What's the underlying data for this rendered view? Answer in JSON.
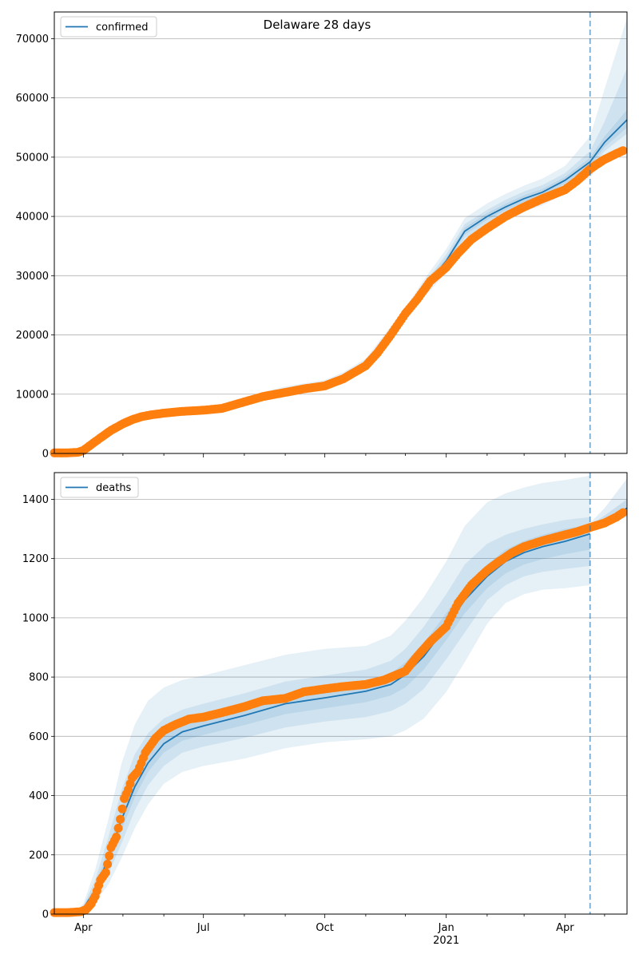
{
  "figure": {
    "title": "Delaware 28 days"
  },
  "colors": {
    "model_line": "#1f77b4",
    "band_fill": "#1f77b4",
    "observed_points": "#ff7f0e",
    "grid": "#b0b0b0",
    "vline": "#1f77b4"
  },
  "chart_data": [
    {
      "type": "line",
      "legend": [
        "confirmed"
      ],
      "legend_position": "top-left",
      "grid": "y",
      "x_axis": {
        "type": "date",
        "range": [
          "2020-03-10",
          "2021-05-18"
        ],
        "major_ticks": [
          {
            "date": "2020-04-01",
            "label": ""
          },
          {
            "date": "2020-07-01",
            "label": ""
          },
          {
            "date": "2020-10-01",
            "label": ""
          },
          {
            "date": "2021-01-01",
            "label": ""
          },
          {
            "date": "2021-04-01",
            "label": ""
          }
        ]
      },
      "y_axis": {
        "range": [
          0,
          74500
        ],
        "ticks": [
          0,
          10000,
          20000,
          30000,
          40000,
          50000,
          60000,
          70000
        ],
        "tick_labels": [
          "0",
          "10000",
          "20000",
          "30000",
          "40000",
          "50000",
          "60000",
          "70000"
        ]
      },
      "forecast_start": "2021-04-20",
      "model_curve": {
        "name": "confirmed",
        "x": [
          "2020-03-10",
          "2020-03-25",
          "2020-04-01",
          "2020-04-15",
          "2020-05-01",
          "2020-05-15",
          "2020-06-01",
          "2020-07-01",
          "2020-07-15",
          "2020-08-01",
          "2020-09-01",
          "2020-10-01",
          "2020-10-15",
          "2020-11-01",
          "2020-11-15",
          "2020-12-01",
          "2020-12-15",
          "2021-01-01",
          "2021-01-15",
          "2021-02-01",
          "2021-02-15",
          "2021-03-01",
          "2021-03-15",
          "2021-04-01",
          "2021-04-20",
          "2021-05-01",
          "2021-05-18"
        ],
        "y": [
          0,
          100,
          1100,
          3000,
          5200,
          6200,
          6900,
          7300,
          7700,
          8900,
          10700,
          11800,
          13000,
          15200,
          19000,
          23300,
          27800,
          32500,
          37500,
          40000,
          41600,
          43000,
          44100,
          46100,
          49200,
          52500,
          56300
        ]
      },
      "bands": [
        {
          "level": "outer",
          "lower": [
            0,
            90,
            900,
            2600,
            4700,
            5700,
            6400,
            6800,
            7200,
            8400,
            10200,
            11300,
            12400,
            14600,
            18200,
            22200,
            26300,
            30500,
            35200,
            37800,
            39400,
            40800,
            41900,
            43800,
            46600,
            49300,
            51800
          ],
          "upper": [
            0,
            110,
            1300,
            3500,
            5800,
            6700,
            7400,
            7800,
            8300,
            9500,
            11300,
            12400,
            13700,
            16000,
            20000,
            24500,
            29300,
            34500,
            39700,
            42200,
            43800,
            45200,
            46400,
            48500,
            53500,
            61500,
            73500
          ]
        },
        {
          "level": "middle",
          "lower": [
            0,
            95,
            950,
            2750,
            4900,
            5900,
            6600,
            7000,
            7400,
            8600,
            10400,
            11500,
            12700,
            14900,
            18600,
            22700,
            27000,
            31400,
            36300,
            38900,
            40500,
            41900,
            43000,
            45000,
            47900,
            51000,
            54000
          ],
          "upper": [
            0,
            105,
            1200,
            3300,
            5500,
            6450,
            7150,
            7550,
            8000,
            9200,
            11000,
            12100,
            13300,
            15600,
            19500,
            23900,
            28600,
            33600,
            38700,
            41100,
            42800,
            44200,
            45300,
            47300,
            51000,
            56000,
            65000
          ]
        },
        {
          "level": "inner",
          "lower": [
            0,
            98,
            1030,
            2880,
            5050,
            6050,
            6750,
            7150,
            7550,
            8750,
            10550,
            11650,
            12850,
            15050,
            18800,
            23000,
            27400,
            32000,
            36900,
            39450,
            41050,
            42450,
            43550,
            45550,
            48500,
            51700,
            55000
          ],
          "upper": [
            0,
            102,
            1170,
            3120,
            5350,
            6350,
            7050,
            7450,
            7850,
            9050,
            10850,
            11950,
            13150,
            15350,
            19200,
            23600,
            28200,
            33000,
            38100,
            40550,
            42150,
            43550,
            44650,
            46650,
            49900,
            53500,
            58000
          ]
        }
      ],
      "observed": {
        "x": [
          "2020-03-10",
          "2020-03-20",
          "2020-03-28",
          "2020-04-01",
          "2020-04-07",
          "2020-04-15",
          "2020-04-22",
          "2020-05-01",
          "2020-05-08",
          "2020-05-15",
          "2020-05-22",
          "2020-06-01",
          "2020-06-15",
          "2020-07-01",
          "2020-07-15",
          "2020-08-01",
          "2020-08-15",
          "2020-09-01",
          "2020-09-15",
          "2020-10-01",
          "2020-10-15",
          "2020-11-01",
          "2020-11-10",
          "2020-11-20",
          "2020-12-01",
          "2020-12-10",
          "2020-12-20",
          "2021-01-01",
          "2021-01-10",
          "2021-01-20",
          "2021-02-01",
          "2021-02-15",
          "2021-03-01",
          "2021-03-15",
          "2021-04-01",
          "2021-04-10",
          "2021-04-20",
          "2021-04-30",
          "2021-05-10",
          "2021-05-15"
        ],
        "y": [
          100,
          100,
          200,
          500,
          1500,
          2800,
          3900,
          5000,
          5700,
          6200,
          6500,
          6800,
          7100,
          7300,
          7600,
          8700,
          9600,
          10300,
          10900,
          11400,
          12600,
          14800,
          17000,
          20000,
          23600,
          26000,
          29100,
          31400,
          33800,
          36100,
          38000,
          40000,
          41600,
          43000,
          44500,
          46000,
          48000,
          49500,
          50600,
          51100
        ]
      }
    },
    {
      "type": "line",
      "legend": [
        "deaths"
      ],
      "legend_position": "top-left",
      "grid": "y",
      "x_axis": {
        "type": "date",
        "range": [
          "2020-03-10",
          "2021-05-18"
        ],
        "major_ticks": [
          {
            "date": "2020-04-01",
            "label": "Apr"
          },
          {
            "date": "2020-07-01",
            "label": "Jul"
          },
          {
            "date": "2020-10-01",
            "label": "Oct"
          },
          {
            "date": "2021-01-01",
            "label": "Jan"
          },
          {
            "date": "2021-04-01",
            "label": "Apr"
          }
        ],
        "year_label": {
          "date": "2021-01-01",
          "label": "2021"
        }
      },
      "y_axis": {
        "range": [
          0,
          1490
        ],
        "ticks": [
          0,
          200,
          400,
          600,
          800,
          1000,
          1200,
          1400
        ],
        "tick_labels": [
          "0",
          "200",
          "400",
          "600",
          "800",
          "1000",
          "1200",
          "1400"
        ]
      },
      "forecast_start": "2021-04-20",
      "model_curve": {
        "name": "deaths",
        "x": [
          "2020-03-10",
          "2020-03-25",
          "2020-04-01",
          "2020-04-10",
          "2020-04-20",
          "2020-04-30",
          "2020-05-10",
          "2020-05-20",
          "2020-06-01",
          "2020-06-15",
          "2020-07-01",
          "2020-08-01",
          "2020-09-01",
          "2020-10-01",
          "2020-11-01",
          "2020-11-20",
          "2020-12-01",
          "2020-12-15",
          "2021-01-01",
          "2021-01-15",
          "2021-02-01",
          "2021-02-15",
          "2021-03-01",
          "2021-03-15",
          "2021-04-01",
          "2021-04-20"
        ],
        "y": [
          0,
          5,
          20,
          80,
          190,
          320,
          430,
          510,
          575,
          615,
          635,
          670,
          710,
          730,
          752,
          775,
          808,
          870,
          970,
          1060,
          1140,
          1190,
          1220,
          1240,
          1258,
          1283
        ]
      },
      "forecast_curve": {
        "x": [
          "2021-04-20",
          "2021-05-01",
          "2021-05-18"
        ],
        "y": [
          1305,
          1330,
          1370
        ]
      },
      "bands": [
        {
          "level": "outer",
          "lower": [
            0,
            3,
            10,
            40,
            100,
            190,
            290,
            370,
            440,
            480,
            500,
            525,
            560,
            580,
            590,
            600,
            620,
            660,
            750,
            850,
            980,
            1050,
            1080,
            1095,
            1100,
            1110
          ],
          "upper": [
            0,
            8,
            35,
            150,
            320,
            510,
            640,
            720,
            765,
            790,
            805,
            840,
            875,
            895,
            905,
            940,
            990,
            1070,
            1190,
            1310,
            1390,
            1420,
            1440,
            1455,
            1465,
            1480
          ]
        },
        {
          "level": "middle",
          "lower": [
            0,
            4,
            14,
            55,
            135,
            240,
            350,
            435,
            500,
            545,
            565,
            595,
            630,
            650,
            665,
            685,
            710,
            760,
            860,
            950,
            1060,
            1110,
            1140,
            1155,
            1165,
            1175
          ],
          "upper": [
            0,
            6,
            28,
            115,
            260,
            420,
            540,
            610,
            660,
            690,
            710,
            745,
            785,
            805,
            825,
            855,
            895,
            970,
            1080,
            1180,
            1250,
            1280,
            1300,
            1315,
            1330,
            1340
          ]
        },
        {
          "level": "inner",
          "lower": [
            0,
            4,
            17,
            68,
            165,
            285,
            395,
            480,
            545,
            585,
            605,
            638,
            675,
            695,
            715,
            738,
            765,
            825,
            925,
            1015,
            1100,
            1150,
            1180,
            1198,
            1215,
            1230
          ],
          "upper": [
            0,
            6,
            24,
            95,
            220,
            360,
            475,
            545,
            605,
            645,
            665,
            700,
            742,
            762,
            785,
            812,
            850,
            915,
            1015,
            1105,
            1180,
            1230,
            1260,
            1280,
            1300,
            1315
          ]
        }
      ],
      "forecast_bands": [
        {
          "level": "outer",
          "x": [
            "2021-04-20",
            "2021-05-01",
            "2021-05-18"
          ],
          "lower": [
            1290,
            1315,
            1340
          ],
          "upper": [
            1320,
            1370,
            1470
          ]
        },
        {
          "level": "inner",
          "x": [
            "2021-04-20",
            "2021-05-01",
            "2021-05-18"
          ],
          "lower": [
            1298,
            1322,
            1355
          ],
          "upper": [
            1312,
            1345,
            1400
          ]
        }
      ],
      "observed": {
        "x": [
          "2020-03-10",
          "2020-03-20",
          "2020-03-30",
          "2020-04-03",
          "2020-04-07",
          "2020-04-10",
          "2020-04-14",
          "2020-04-18",
          "2020-04-22",
          "2020-04-26",
          "2020-04-29",
          "2020-05-02",
          "2020-05-05",
          "2020-05-08",
          "2020-05-12",
          "2020-05-15",
          "2020-05-18",
          "2020-05-22",
          "2020-05-26",
          "2020-06-01",
          "2020-06-10",
          "2020-06-20",
          "2020-07-01",
          "2020-07-15",
          "2020-08-01",
          "2020-08-15",
          "2020-09-01",
          "2020-09-15",
          "2020-10-01",
          "2020-10-15",
          "2020-11-01",
          "2020-11-15",
          "2020-12-01",
          "2020-12-10",
          "2020-12-20",
          "2021-01-01",
          "2021-01-10",
          "2021-01-20",
          "2021-02-01",
          "2021-02-10",
          "2021-02-20",
          "2021-03-01",
          "2021-03-15",
          "2021-04-01",
          "2021-04-10",
          "2021-04-20",
          "2021-05-01",
          "2021-05-10",
          "2021-05-15"
        ],
        "y": [
          5,
          5,
          8,
          15,
          35,
          60,
          115,
          140,
          225,
          260,
          320,
          390,
          420,
          460,
          480,
          510,
          545,
          570,
          595,
          620,
          640,
          658,
          665,
          680,
          700,
          720,
          728,
          750,
          760,
          768,
          775,
          790,
          820,
          870,
          920,
          970,
          1050,
          1110,
          1160,
          1190,
          1220,
          1240,
          1260,
          1280,
          1290,
          1305,
          1320,
          1340,
          1355
        ]
      }
    }
  ]
}
